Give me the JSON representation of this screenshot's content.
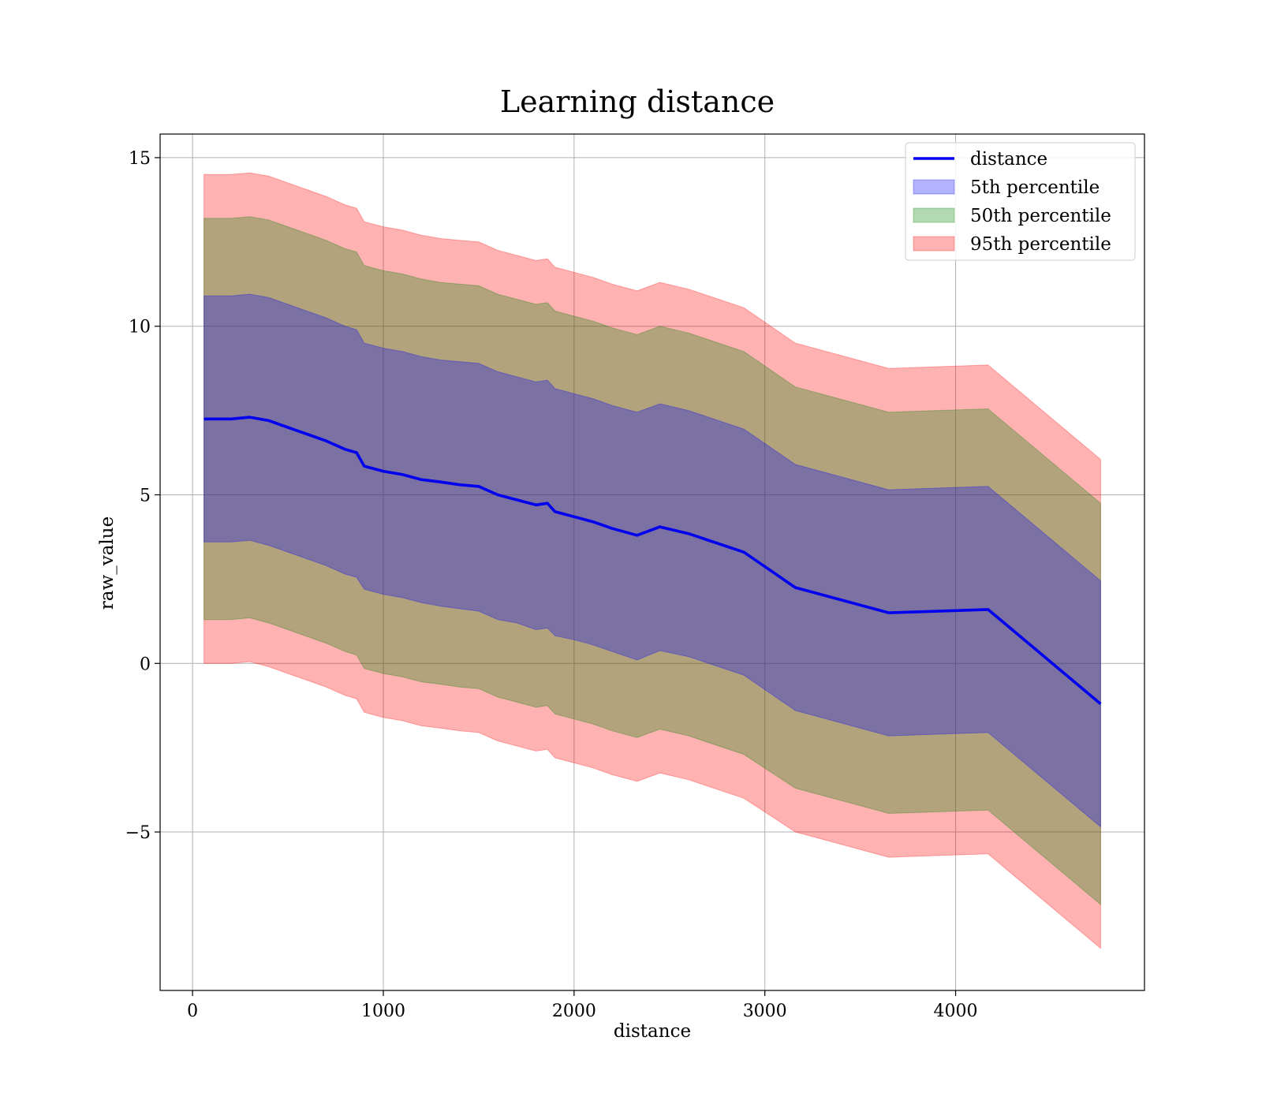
{
  "chart_data": {
    "type": "area",
    "title": "Learning distance",
    "xlabel": "distance",
    "ylabel": "raw_value",
    "xlim": [
      -170,
      4990
    ],
    "ylim": [
      -9.7,
      15.7
    ],
    "xticks": [
      0,
      1000,
      2000,
      3000,
      4000
    ],
    "yticks": [
      -5,
      0,
      5,
      10,
      15
    ],
    "ytick_labels": [
      "−5",
      "0",
      "5",
      "10",
      "15"
    ],
    "grid": true,
    "legend_position": "top-right",
    "x": [
      60,
      200,
      300,
      400,
      500,
      600,
      700,
      800,
      860,
      900,
      1000,
      1100,
      1200,
      1300,
      1400,
      1500,
      1600,
      1700,
      1800,
      1860,
      1900,
      2000,
      2100,
      2200,
      2330,
      2450,
      2600,
      2890,
      3160,
      3650,
      4170,
      4760
    ],
    "series": [
      {
        "name": "distance",
        "kind": "line",
        "color": "#0000ee",
        "values": [
          7.25,
          7.25,
          7.3,
          7.2,
          7.0,
          6.8,
          6.6,
          6.35,
          6.25,
          5.85,
          5.7,
          5.6,
          5.45,
          5.38,
          5.3,
          5.25,
          5.0,
          4.85,
          4.7,
          4.75,
          4.5,
          4.35,
          4.2,
          4.0,
          3.8,
          4.05,
          3.85,
          3.3,
          2.25,
          1.5,
          1.6,
          -1.2
        ]
      },
      {
        "name": "5th percentile",
        "kind": "band",
        "color": "#0000ff",
        "opacity": 0.3,
        "lower": [
          3.6,
          3.6,
          3.65,
          3.5,
          3.3,
          3.1,
          2.9,
          2.65,
          2.55,
          2.2,
          2.05,
          1.95,
          1.8,
          1.7,
          1.62,
          1.55,
          1.3,
          1.2,
          1.0,
          1.05,
          0.82,
          0.7,
          0.55,
          0.35,
          0.1,
          0.38,
          0.2,
          -0.35,
          -1.4,
          -2.15,
          -2.05,
          -4.85
        ],
        "upper": [
          10.9,
          10.9,
          10.95,
          10.85,
          10.65,
          10.45,
          10.25,
          10.0,
          9.9,
          9.5,
          9.35,
          9.25,
          9.1,
          9.0,
          8.95,
          8.9,
          8.65,
          8.5,
          8.35,
          8.4,
          8.15,
          8.0,
          7.85,
          7.65,
          7.45,
          7.7,
          7.5,
          6.95,
          5.9,
          5.15,
          5.25,
          2.45
        ]
      },
      {
        "name": "50th percentile",
        "kind": "band",
        "color": "#008000",
        "opacity": 0.3,
        "lower": [
          1.3,
          1.3,
          1.35,
          1.2,
          1.0,
          0.8,
          0.6,
          0.35,
          0.25,
          -0.15,
          -0.3,
          -0.4,
          -0.55,
          -0.62,
          -0.7,
          -0.75,
          -1.0,
          -1.15,
          -1.3,
          -1.25,
          -1.5,
          -1.65,
          -1.8,
          -2.0,
          -2.2,
          -1.95,
          -2.15,
          -2.7,
          -3.7,
          -4.45,
          -4.35,
          -7.15
        ],
        "upper": [
          13.2,
          13.2,
          13.25,
          13.15,
          12.95,
          12.75,
          12.55,
          12.3,
          12.2,
          11.8,
          11.65,
          11.55,
          11.4,
          11.3,
          11.25,
          11.2,
          10.95,
          10.8,
          10.65,
          10.7,
          10.45,
          10.3,
          10.15,
          9.95,
          9.75,
          10.0,
          9.8,
          9.25,
          8.2,
          7.45,
          7.55,
          4.75
        ]
      },
      {
        "name": "95th percentile",
        "kind": "band",
        "color": "#ff0000",
        "opacity": 0.3,
        "lower": [
          0.0,
          0.0,
          0.05,
          -0.1,
          -0.3,
          -0.5,
          -0.7,
          -0.95,
          -1.05,
          -1.45,
          -1.6,
          -1.7,
          -1.85,
          -1.92,
          -2.0,
          -2.05,
          -2.3,
          -2.45,
          -2.6,
          -2.55,
          -2.8,
          -2.95,
          -3.1,
          -3.3,
          -3.5,
          -3.25,
          -3.45,
          -4.0,
          -5.0,
          -5.75,
          -5.65,
          -8.45
        ],
        "upper": [
          14.5,
          14.5,
          14.55,
          14.45,
          14.25,
          14.05,
          13.85,
          13.6,
          13.5,
          13.1,
          12.95,
          12.85,
          12.7,
          12.6,
          12.55,
          12.5,
          12.25,
          12.1,
          11.95,
          12.0,
          11.75,
          11.6,
          11.45,
          11.25,
          11.05,
          11.3,
          11.1,
          10.55,
          9.5,
          8.75,
          8.85,
          6.05
        ]
      }
    ]
  }
}
